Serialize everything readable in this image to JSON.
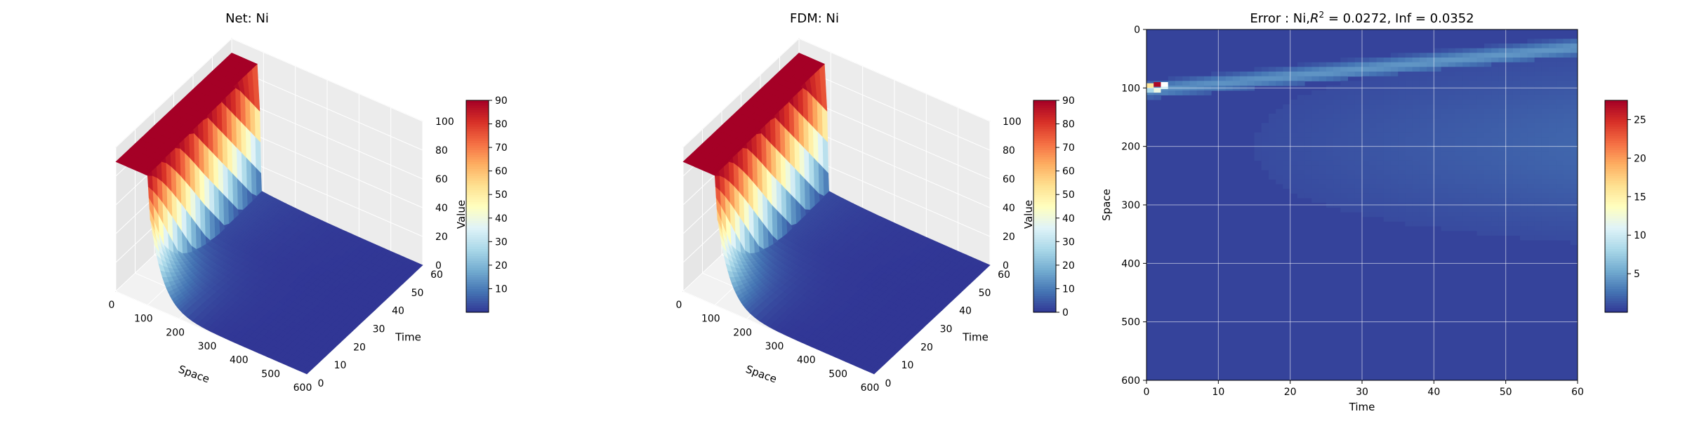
{
  "chart_data": [
    {
      "type": "surface",
      "title": "Net: Ni",
      "xlabel": "Space",
      "ylabel": "Time",
      "zlabel": "Value",
      "xlim": [
        0,
        600
      ],
      "ylim": [
        0,
        60
      ],
      "zlim": [
        0,
        100
      ],
      "xticks": [
        "0",
        "100",
        "200",
        "300",
        "400",
        "500",
        "600"
      ],
      "yticks": [
        "0",
        "10",
        "20",
        "30",
        "40",
        "50",
        "60"
      ],
      "zticks": [
        "0",
        "20",
        "40",
        "60",
        "80",
        "100"
      ],
      "colorbar": {
        "min": 0,
        "max": 90,
        "ticks": [
          "10",
          "20",
          "30",
          "40",
          "50",
          "60",
          "70",
          "80",
          "90"
        ]
      },
      "colormap": [
        "#313695",
        "#4575b4",
        "#74add1",
        "#abd9e9",
        "#e0f3f8",
        "#ffffbf",
        "#fee090",
        "#fdae61",
        "#f46d43",
        "#d73027",
        "#a50026"
      ],
      "description": "Value ≈ 90 for Space < 100; sharp drop at Space ≈ 100; at t = 0 value decays from ≈ 60 near Space 100 to ≈ 0 by Space ≈ 600; diffusion front spreads slightly with time"
    },
    {
      "type": "surface",
      "title": "FDM: Ni",
      "xlabel": "Space",
      "ylabel": "Time",
      "zlabel": "Value",
      "xlim": [
        0,
        600
      ],
      "ylim": [
        0,
        60
      ],
      "zlim": [
        0,
        100
      ],
      "xticks": [
        "0",
        "100",
        "200",
        "300",
        "400",
        "500",
        "600"
      ],
      "yticks": [
        "0",
        "10",
        "20",
        "30",
        "40",
        "50",
        "60"
      ],
      "zticks": [
        "0",
        "20",
        "40",
        "60",
        "80",
        "100"
      ],
      "colorbar": {
        "min": 0,
        "max": 90,
        "ticks": [
          "0",
          "10",
          "20",
          "30",
          "40",
          "50",
          "60",
          "70",
          "80",
          "90"
        ]
      },
      "colormap": [
        "#313695",
        "#4575b4",
        "#74add1",
        "#abd9e9",
        "#e0f3f8",
        "#ffffbf",
        "#fee090",
        "#fdae61",
        "#f46d43",
        "#d73027",
        "#a50026"
      ]
    },
    {
      "type": "heatmap",
      "title_prefix": "Error : Ni,",
      "title_r": "R",
      "title_sup": "2",
      "title_suffix": " = 0.0272, Inf = 0.0352",
      "xlabel": "Time",
      "ylabel": "Space",
      "xlim": [
        0,
        60
      ],
      "ylim": [
        600,
        0
      ],
      "xticks": [
        "0",
        "10",
        "20",
        "30",
        "40",
        "50",
        "60"
      ],
      "yticks": [
        "0",
        "100",
        "200",
        "300",
        "400",
        "500",
        "600"
      ],
      "grid": true,
      "colorbar": {
        "min": 0,
        "max": 27.5,
        "ticks": [
          "5",
          "10",
          "15",
          "20",
          "25"
        ]
      },
      "colormap": [
        "#313695",
        "#4575b4",
        "#74add1",
        "#abd9e9",
        "#e0f3f8",
        "#ffffbf",
        "#fee090",
        "#fdae61",
        "#f46d43",
        "#d73027",
        "#a50026"
      ],
      "peak": {
        "time": 1,
        "space": 96,
        "value": 27
      },
      "band": {
        "space_at_t0": 104,
        "space_at_t60": 30,
        "value": 4
      }
    }
  ]
}
